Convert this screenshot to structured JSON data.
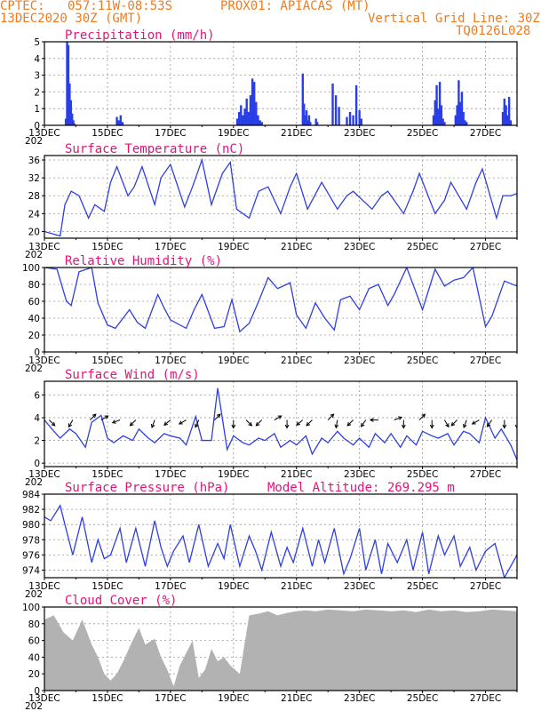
{
  "header": {
    "source": "CPTEC:",
    "coords": "057:11W-08:53S",
    "station": "PROX01: APIACAS (MT)",
    "date": "13DEC2020 30Z (GMT)",
    "grid_note": "Vertical Grid Line: 30Z",
    "code": "TQ0126L028"
  },
  "x_ticks": [
    "13DEC",
    "15DEC",
    "17DEC",
    "19DEC",
    "21DEC",
    "23DEC",
    "25DEC",
    "27DEC"
  ],
  "x_tick_days": [
    0,
    2,
    4,
    6,
    8,
    10,
    12,
    14
  ],
  "x_range_days": [
    0,
    15
  ],
  "year_fragment": "202",
  "colors": {
    "line": "#2f3fe0",
    "bar": "#2a3ee8",
    "cloud": "#b2b2b2",
    "title": "#e0157c",
    "header": "#f07b1e",
    "grid": "#9a9a9a"
  },
  "chart_data": [
    {
      "id": "precip",
      "type": "bar",
      "title": "Precipitation (mm/h)",
      "ylim": [
        0,
        5
      ],
      "yticks": [
        0,
        1,
        2,
        3,
        4,
        5
      ],
      "grid": true,
      "x_days": [
        0.68,
        0.72,
        0.76,
        0.8,
        0.84,
        0.88,
        0.92,
        0.96,
        2.3,
        2.36,
        2.42,
        2.48,
        6.12,
        6.18,
        6.24,
        6.3,
        6.36,
        6.42,
        6.48,
        6.54,
        6.6,
        6.66,
        6.72,
        6.78,
        6.84,
        6.9,
        8.2,
        8.24,
        8.28,
        8.32,
        8.36,
        8.4,
        8.44,
        8.62,
        8.66,
        9.15,
        9.25,
        9.35,
        9.6,
        9.7,
        9.8,
        9.9,
        10.0,
        10.06,
        12.35,
        12.4,
        12.45,
        12.5,
        12.55,
        12.6,
        12.65,
        12.7,
        13.05,
        13.1,
        13.15,
        13.2,
        13.25,
        13.3,
        13.35,
        13.4,
        14.55,
        14.6,
        14.65,
        14.7,
        14.75,
        14.8
      ],
      "values": [
        0.4,
        5.0,
        4.8,
        2.5,
        1.5,
        0.7,
        0.3,
        0.1,
        0.5,
        0.3,
        0.6,
        0.2,
        0.4,
        0.8,
        1.2,
        0.6,
        1.0,
        1.6,
        0.8,
        1.8,
        2.8,
        2.6,
        1.4,
        0.6,
        0.3,
        0.2,
        3.1,
        1.3,
        0.6,
        0.9,
        0.3,
        0.6,
        0.2,
        0.4,
        0.2,
        2.5,
        1.8,
        1.1,
        0.5,
        0.8,
        0.6,
        2.4,
        0.9,
        0.4,
        0.6,
        1.5,
        2.4,
        1.0,
        2.6,
        1.2,
        0.4,
        0.2,
        0.6,
        1.2,
        2.7,
        1.4,
        2.0,
        0.8,
        0.3,
        0.2,
        0.8,
        1.6,
        1.2,
        0.6,
        1.7,
        0.3
      ]
    },
    {
      "id": "temp",
      "type": "line",
      "title": "Surface Temperature (nC)",
      "ylim": [
        18.5,
        37
      ],
      "yticks": [
        20,
        24,
        28,
        32,
        36
      ],
      "grid": true,
      "x": [
        0,
        0.5,
        0.65,
        0.85,
        1.1,
        1.4,
        1.6,
        1.9,
        2.1,
        2.3,
        2.65,
        2.85,
        3.1,
        3.5,
        3.7,
        4.0,
        4.45,
        4.7,
        5.0,
        5.3,
        5.65,
        5.9,
        6.1,
        6.5,
        6.8,
        7.1,
        7.5,
        7.8,
        8.0,
        8.35,
        8.5,
        8.8,
        9.3,
        9.6,
        9.8,
        10.4,
        10.7,
        10.9,
        11.4,
        11.7,
        11.9,
        12.4,
        12.7,
        12.9,
        13.4,
        13.7,
        13.9,
        14.35,
        14.55,
        14.8,
        15.0
      ],
      "y": [
        20,
        19,
        26,
        29,
        28,
        23,
        26,
        24.5,
        31,
        34.5,
        28,
        30,
        34.5,
        26,
        32,
        35,
        25.5,
        30,
        36,
        26,
        33,
        35.5,
        25,
        23,
        29,
        30,
        24,
        30,
        33,
        25,
        27,
        31,
        25,
        28,
        29,
        25,
        28,
        29,
        24,
        29,
        33,
        24,
        27,
        31,
        25,
        31,
        34,
        23,
        28,
        28,
        28.5
      ]
    },
    {
      "id": "rh",
      "type": "line",
      "title": "Relative Humidity (%)",
      "ylim": [
        0,
        100
      ],
      "yticks": [
        0,
        20,
        40,
        60,
        80,
        100
      ],
      "grid": true,
      "x": [
        0,
        0.4,
        0.7,
        0.85,
        1.1,
        1.5,
        1.7,
        2.0,
        2.25,
        2.7,
        2.95,
        3.2,
        3.6,
        3.8,
        4.0,
        4.5,
        4.75,
        5.0,
        5.4,
        5.7,
        5.95,
        6.2,
        6.5,
        6.8,
        7.1,
        7.4,
        7.8,
        8.0,
        8.3,
        8.6,
        8.9,
        9.2,
        9.4,
        9.7,
        10.0,
        10.3,
        10.6,
        10.9,
        11.1,
        11.5,
        11.8,
        12.0,
        12.4,
        12.7,
        13.0,
        13.3,
        13.6,
        14.0,
        14.2,
        14.6,
        15.0
      ],
      "y": [
        100,
        98,
        60,
        55,
        95,
        100,
        58,
        32,
        28,
        50,
        35,
        28,
        68,
        52,
        38,
        28,
        50,
        68,
        28,
        30,
        62,
        24,
        34,
        60,
        88,
        75,
        82,
        44,
        28,
        58,
        40,
        26,
        62,
        66,
        50,
        75,
        80,
        55,
        68,
        100,
        70,
        50,
        98,
        78,
        85,
        88,
        100,
        30,
        42,
        84,
        78
      ]
    },
    {
      "id": "wind",
      "type": "line",
      "title": "Surface Wind (m/s)",
      "ylim": [
        -0.3,
        7.2
      ],
      "yticks": [
        0,
        2,
        4,
        6
      ],
      "grid": true,
      "x": [
        0,
        0.3,
        0.5,
        0.8,
        1.0,
        1.3,
        1.5,
        1.8,
        2.0,
        2.2,
        2.5,
        2.8,
        3.0,
        3.3,
        3.5,
        3.8,
        4.0,
        4.3,
        4.5,
        4.8,
        5.0,
        5.3,
        5.5,
        5.8,
        6.0,
        6.3,
        6.5,
        6.8,
        7.0,
        7.3,
        7.5,
        7.8,
        8.0,
        8.3,
        8.5,
        8.8,
        9.0,
        9.3,
        9.5,
        9.8,
        10.0,
        10.3,
        10.5,
        10.8,
        11.0,
        11.3,
        11.5,
        11.8,
        12.0,
        12.3,
        12.5,
        12.8,
        13.0,
        13.3,
        13.5,
        13.8,
        14.0,
        14.3,
        14.5,
        14.8,
        15.0
      ],
      "y": [
        3.8,
        2.8,
        2.2,
        3.0,
        2.6,
        1.4,
        3.6,
        4.2,
        2.2,
        1.8,
        2.4,
        2.0,
        3.0,
        2.2,
        1.8,
        2.6,
        2.4,
        2.2,
        1.6,
        4.1,
        2.0,
        2.0,
        6.6,
        1.2,
        2.4,
        1.8,
        1.6,
        2.2,
        2.0,
        2.6,
        1.4,
        2.0,
        1.6,
        2.4,
        0.8,
        2.2,
        1.8,
        2.8,
        2.2,
        1.6,
        2.2,
        1.4,
        2.6,
        1.8,
        2.6,
        1.4,
        2.4,
        1.6,
        2.8,
        2.4,
        2.2,
        2.6,
        1.6,
        2.8,
        2.6,
        1.8,
        4.0,
        2.2,
        3.0,
        1.6,
        0.3
      ],
      "arrows_x": [
        0.15,
        0.9,
        1.45,
        1.8,
        2.4,
        2.9,
        3.5,
        4.0,
        4.5,
        4.9,
        5.4,
        6.0,
        6.4,
        6.9,
        7.3,
        7.7,
        8.2,
        8.5,
        9.0,
        9.3,
        9.8,
        10.2,
        10.6,
        11.1,
        11.4,
        11.9,
        12.3,
        12.7,
        13.1,
        13.4,
        13.8,
        14.2,
        14.6,
        15.0
      ],
      "arrows_dir_deg": [
        315,
        240,
        45,
        30,
        200,
        225,
        250,
        220,
        210,
        245,
        45,
        270,
        315,
        225,
        30,
        270,
        220,
        225,
        45,
        260,
        225,
        235,
        180,
        20,
        270,
        45,
        270,
        300,
        225,
        250,
        210,
        235,
        270,
        270
      ]
    },
    {
      "id": "press",
      "type": "line",
      "title": "Surface Pressure (hPa)",
      "annotation": "Model Altitude: 269.295 m",
      "ylim": [
        973,
        984
      ],
      "yticks": [
        974,
        976,
        978,
        980,
        982,
        984
      ],
      "grid": true,
      "x": [
        0,
        0.2,
        0.5,
        0.65,
        0.9,
        1.2,
        1.5,
        1.7,
        1.9,
        2.1,
        2.4,
        2.6,
        2.9,
        3.2,
        3.5,
        3.7,
        3.9,
        4.1,
        4.4,
        4.6,
        4.9,
        5.2,
        5.5,
        5.7,
        5.9,
        6.2,
        6.5,
        6.7,
        6.9,
        7.2,
        7.5,
        7.7,
        7.9,
        8.2,
        8.5,
        8.7,
        8.9,
        9.2,
        9.5,
        9.7,
        10.0,
        10.2,
        10.5,
        10.7,
        10.9,
        11.2,
        11.5,
        11.7,
        12.0,
        12.2,
        12.5,
        12.7,
        13.0,
        13.2,
        13.5,
        13.7,
        14.0,
        14.3,
        14.6,
        15.0
      ],
      "y": [
        981,
        980.5,
        982.5,
        980,
        976,
        981,
        975,
        978,
        975.5,
        976,
        979.5,
        975,
        979.5,
        974.5,
        980.5,
        977,
        974.5,
        976.5,
        978.5,
        975,
        980,
        974.5,
        977.5,
        975.5,
        980,
        974.5,
        978.5,
        976.5,
        974,
        979,
        974.5,
        977,
        975,
        979.5,
        974.5,
        978,
        975,
        979.5,
        973.5,
        975.5,
        979.5,
        974,
        978,
        973.5,
        977.5,
        975,
        978,
        974,
        979,
        973.5,
        978.5,
        976,
        978.5,
        974.5,
        977,
        974,
        976.5,
        977.5,
        973,
        976
      ]
    },
    {
      "id": "cloud",
      "type": "area",
      "title": "Cloud Cover (%)",
      "ylim": [
        0,
        100
      ],
      "yticks": [
        0,
        20,
        40,
        60,
        80,
        100
      ],
      "grid": true,
      "x": [
        0,
        0.3,
        0.6,
        0.9,
        1.2,
        1.5,
        1.7,
        1.9,
        2.1,
        2.3,
        2.5,
        2.8,
        3.0,
        3.2,
        3.5,
        3.7,
        3.9,
        4.1,
        4.3,
        4.5,
        4.7,
        4.9,
        5.1,
        5.3,
        5.5,
        5.7,
        5.9,
        6.2,
        6.5,
        6.8,
        7.1,
        7.4,
        7.7,
        8.0,
        8.3,
        8.6,
        9.0,
        9.4,
        9.8,
        10.2,
        10.6,
        11.0,
        11.4,
        11.8,
        12.2,
        12.6,
        13.0,
        13.4,
        13.8,
        14.2,
        14.6,
        15.0
      ],
      "y": [
        85,
        90,
        70,
        60,
        85,
        55,
        40,
        20,
        12,
        20,
        35,
        60,
        75,
        55,
        62,
        40,
        25,
        5,
        30,
        45,
        60,
        15,
        25,
        50,
        35,
        40,
        30,
        20,
        90,
        92,
        95,
        90,
        93,
        95,
        96,
        95,
        97,
        96,
        95,
        97,
        96,
        95,
        96,
        94,
        97,
        95,
        96,
        94,
        95,
        97,
        96,
        95
      ]
    }
  ]
}
